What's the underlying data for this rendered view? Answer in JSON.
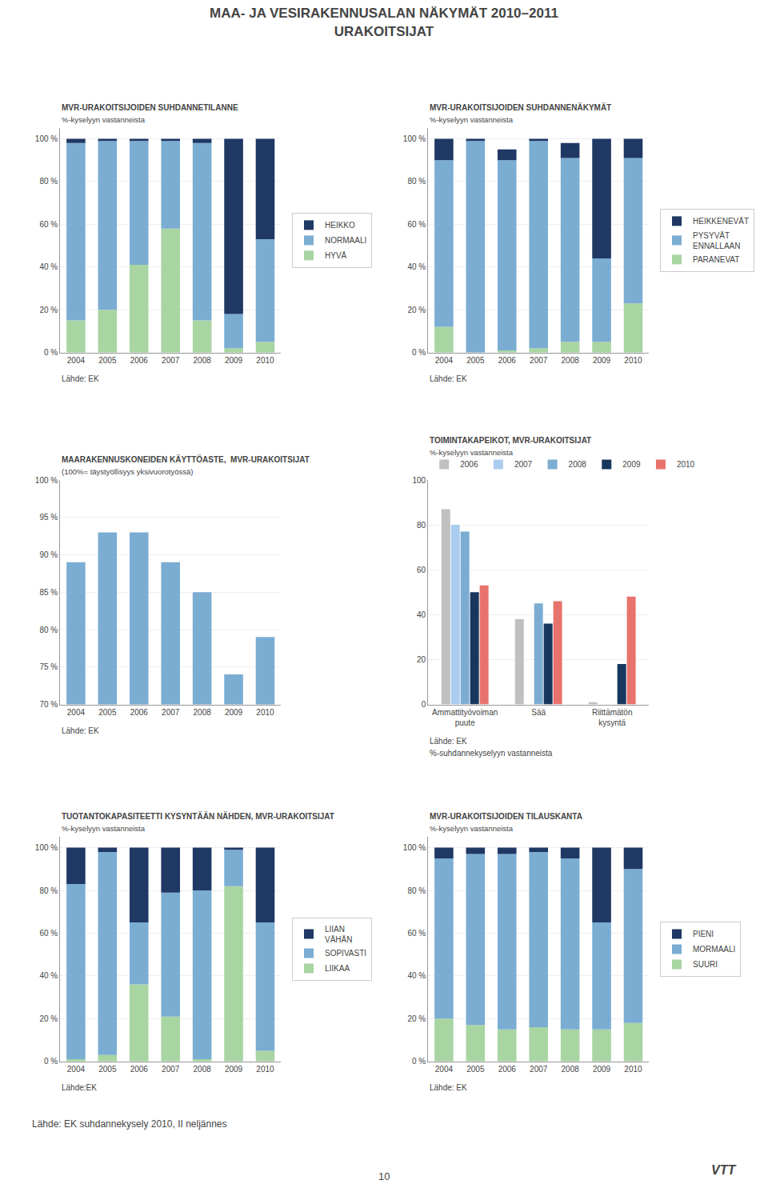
{
  "title": "MAA- JA VESIRAKENNUSALAN NÄKYMÄT 2010–2011",
  "subtitle": "URAKOITSIJAT",
  "annotations": [
    "Lähde: EK suhdannekysely 2010, II neljännes",
    "10",
    "VTT"
  ],
  "chart_data": [
    {
      "type": "bar",
      "stacked": true,
      "grid": true,
      "legend": "right",
      "title": "MVR-URAKOITSIJOIDEN SUHDANNETILANNE",
      "subtitle": "%-kyselyyn vastanneista",
      "annotations": [
        "Lähde: EK"
      ],
      "categories": [
        "2004",
        "2005",
        "2006",
        "2007",
        "2008",
        "2009",
        "2010"
      ],
      "series": [
        {
          "name": "HYVÄ",
          "color": "#A8D5A2",
          "values": [
            15,
            20,
            41,
            58,
            15,
            2,
            5
          ]
        },
        {
          "name": "NORMAALI",
          "color": "#7BADD3",
          "values": [
            83,
            79,
            58,
            41,
            83,
            16,
            48
          ]
        },
        {
          "name": "HEIKKO",
          "color": "#1F3864",
          "values": [
            2,
            1,
            1,
            1,
            2,
            82,
            47
          ]
        }
      ],
      "ylim": [
        0,
        105
      ],
      "yticks": [
        {
          "value": 0,
          "label": "0 %"
        },
        {
          "value": 20,
          "label": "20 %"
        },
        {
          "value": 40,
          "label": "40 %"
        },
        {
          "value": 60,
          "label": "60 %"
        },
        {
          "value": 80,
          "label": "80 %"
        },
        {
          "value": 100,
          "label": "100 %"
        }
      ]
    },
    {
      "type": "bar",
      "stacked": true,
      "grid": true,
      "legend": "right",
      "title": "MVR-URAKOITSIJOIDEN SUHDANNENÄKYMÄT",
      "subtitle": "%-kyselyyn vastanneista",
      "annotations": [
        "Lähde: EK"
      ],
      "categories": [
        "2004",
        "2005",
        "2006",
        "2007",
        "2008",
        "2009",
        "2010"
      ],
      "series": [
        {
          "name": "PARANEVAT",
          "color": "#A8D5A2",
          "values": [
            12,
            0,
            1,
            2,
            5,
            5,
            23
          ]
        },
        {
          "name": "PYSYVÄT\nENNALLAAN",
          "color": "#7BADD3",
          "values": [
            78,
            99,
            89,
            97,
            86,
            39,
            68
          ]
        },
        {
          "name": "HEIKKENEVÄT",
          "color": "#1F3864",
          "values": [
            10,
            1,
            5,
            1,
            7,
            56,
            9
          ]
        }
      ],
      "ylim": [
        0,
        105
      ],
      "yticks": [
        {
          "value": 0,
          "label": "0 %"
        },
        {
          "value": 20,
          "label": "20 %"
        },
        {
          "value": 40,
          "label": "40 %"
        },
        {
          "value": 60,
          "label": "60 %"
        },
        {
          "value": 80,
          "label": "80 %"
        },
        {
          "value": 100,
          "label": "100 %"
        }
      ]
    },
    {
      "type": "bar",
      "grid": true,
      "title": "MAARAKENNUSKONEIDEN KÄYTTÖASTE,  MVR-URAKOITSIJAT",
      "subtitle": "(100%= täystyöllisyys yksivuorotyössä)",
      "annotations": [
        "Lähde: EK"
      ],
      "categories": [
        "2004",
        "2005",
        "2006",
        "2007",
        "2008",
        "2009",
        "2010"
      ],
      "values": [
        89,
        93,
        93,
        89,
        85,
        74,
        79
      ],
      "color": "#7BADD3",
      "ylim": [
        70,
        100
      ],
      "yticks": [
        {
          "value": 70,
          "label": "70 %"
        },
        {
          "value": 75,
          "label": "75 %"
        },
        {
          "value": 80,
          "label": "80 %"
        },
        {
          "value": 85,
          "label": "85 %"
        },
        {
          "value": 90,
          "label": "90 %"
        },
        {
          "value": 95,
          "label": "95 %"
        },
        {
          "value": 100,
          "label": "100 %"
        }
      ]
    },
    {
      "type": "bar",
      "stacked": false,
      "grid": true,
      "legend": "top",
      "title": "TOIMINTAKAPEIKOT, MVR-URAKOITSIJAT",
      "subtitle": "%-kyselyyn vastanneista",
      "annotations": [
        "Lähde: EK",
        "%-suhdannekyselyyn vastanneista"
      ],
      "categories": [
        "Ammattityövoiman\npuute",
        "Sää",
        "Riittämätön\nkysyntä"
      ],
      "series": [
        {
          "name": "2006",
          "color": "#C0C0C0",
          "values": [
            87,
            38,
            1
          ]
        },
        {
          "name": "2007",
          "color": "#AACCEE",
          "values": [
            80,
            0,
            0
          ]
        },
        {
          "name": "2008",
          "color": "#7BADD3",
          "values": [
            77,
            45,
            0
          ]
        },
        {
          "name": "2009",
          "color": "#17375E",
          "values": [
            50,
            36,
            18
          ]
        },
        {
          "name": "2010",
          "color": "#E8736C",
          "values": [
            53,
            46,
            48
          ]
        }
      ],
      "ylim": [
        0,
        100
      ],
      "yticks": [
        0,
        20,
        40,
        60,
        80,
        100
      ]
    },
    {
      "type": "bar",
      "stacked": true,
      "grid": true,
      "legend": "right",
      "title": "TUOTANTOKAPASITEETTI KYSYNTÄÄN NÄHDEN, MVR-URAKOITSIJAT",
      "subtitle": "%-kyselyyn vastanneista",
      "annotations": [
        "Lähde:EK"
      ],
      "categories": [
        "2004",
        "2005",
        "2006",
        "2007",
        "2008",
        "2009",
        "2010"
      ],
      "series": [
        {
          "name": "LIIKAA",
          "color": "#A8D5A2",
          "values": [
            1,
            3,
            36,
            21,
            1,
            82,
            5
          ]
        },
        {
          "name": "SOPIVASTI",
          "color": "#7BADD3",
          "values": [
            82,
            95,
            29,
            58,
            79,
            17,
            60
          ]
        },
        {
          "name": "LIIAN\nVÄHÄN",
          "color": "#1F3864",
          "values": [
            17,
            2,
            35,
            21,
            20,
            1,
            35
          ]
        }
      ],
      "ylim": [
        0,
        105
      ],
      "yticks": [
        {
          "value": 0,
          "label": "0 %"
        },
        {
          "value": 20,
          "label": "20 %"
        },
        {
          "value": 40,
          "label": "40 %"
        },
        {
          "value": 60,
          "label": "60 %"
        },
        {
          "value": 80,
          "label": "80 %"
        },
        {
          "value": 100,
          "label": "100 %"
        }
      ]
    },
    {
      "type": "bar",
      "stacked": true,
      "grid": true,
      "legend": "right",
      "title": "MVR-URAKOITSIJOIDEN TILAUSKANTA",
      "subtitle": "%-kyselyyn vastanneista",
      "annotations": [
        "Lähde: EK"
      ],
      "categories": [
        "2004",
        "2005",
        "2006",
        "2007",
        "2008",
        "2009",
        "2010"
      ],
      "series": [
        {
          "name": "SUURI",
          "color": "#A8D5A2",
          "values": [
            20,
            17,
            15,
            16,
            15,
            15,
            18
          ]
        },
        {
          "name": "MORMAALI",
          "color": "#7BADD3",
          "values": [
            75,
            80,
            82,
            82,
            80,
            50,
            72
          ]
        },
        {
          "name": "PIENI",
          "color": "#1F3864",
          "values": [
            5,
            3,
            3,
            2,
            5,
            35,
            10
          ]
        }
      ],
      "ylim": [
        0,
        105
      ],
      "yticks": [
        {
          "value": 0,
          "label": "0 %"
        },
        {
          "value": 20,
          "label": "20 %"
        },
        {
          "value": 40,
          "label": "40 %"
        },
        {
          "value": 60,
          "label": "60 %"
        },
        {
          "value": 80,
          "label": "80 %"
        },
        {
          "value": 100,
          "label": "100 %"
        }
      ]
    }
  ]
}
